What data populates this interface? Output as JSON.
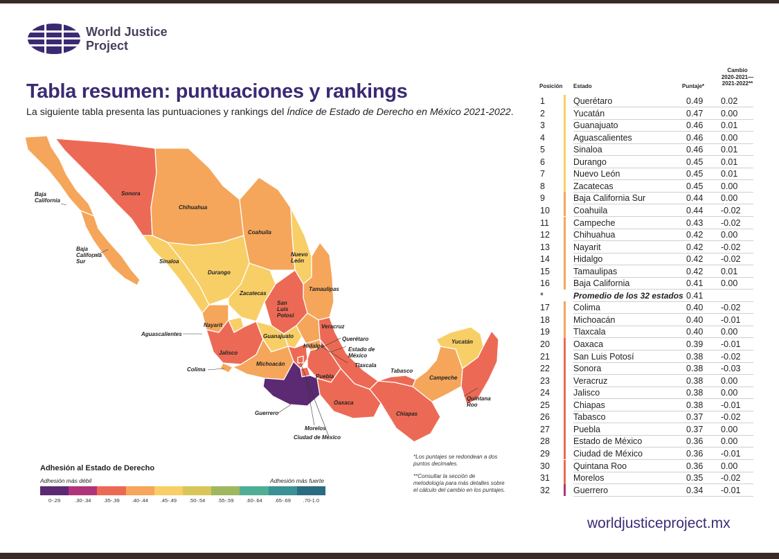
{
  "header": {
    "org_line1": "World Justice",
    "org_line2": "Project",
    "title": "Tabla resumen: puntuaciones y rankings",
    "subtitle_prefix": "La siguiente tabla presenta las puntuaciones y rankings del ",
    "subtitle_italic": "Índice de Estado de Derecho en México 2021-2022",
    "subtitle_suffix": "."
  },
  "map_labels": {
    "baja_california": "Baja California",
    "baja_california_sur": "Baja California Sur",
    "sonora": "Sonora",
    "chihuahua": "Chihuahua",
    "coahuila": "Coahuila",
    "nuevo_leon": "Nuevo León",
    "tamaulipas": "Tamaulipas",
    "sinaloa": "Sinaloa",
    "durango": "Durango",
    "zacatecas": "Zacatecas",
    "san_luis_potosi": "San Luis Potosí",
    "nayarit": "Nayarit",
    "aguascalientes": "Aguascalientes",
    "guanajuato": "Guanajuato",
    "queretaro": "Querétaro",
    "veracruz": "Veracruz",
    "hidalgo": "Hidalgo",
    "estado_de_mexico": "Estado de México",
    "tlaxcala": "Tlaxcala",
    "jalisco": "Jalisco",
    "colima": "Colima",
    "michoacan": "Michoacán",
    "puebla": "Puebla",
    "tabasco": "Tabasco",
    "campeche": "Campeche",
    "yucatan": "Yucatán",
    "quintana_roo": "Quintana Roo",
    "guerrero": "Guerrero",
    "oaxaca": "Oaxaca",
    "chiapas": "Chiapas",
    "morelos": "Morelos",
    "ciudad_de_mexico": "Ciudad de México"
  },
  "legend": {
    "title": "Adhesión al Estado de Derecho",
    "weak": "Adhesión más débil",
    "strong": "Adhesión más fuerte",
    "bins": [
      {
        "label": "0-.29",
        "color": "#5b2a73"
      },
      {
        "label": ".30-.34",
        "color": "#b0347a"
      },
      {
        "label": ".35-.39",
        "color": "#ec6a55"
      },
      {
        "label": ".40-.44",
        "color": "#f5a65a"
      },
      {
        "label": ".45-.49",
        "color": "#f8cf66"
      },
      {
        "label": ".50-.54",
        "color": "#d9c65a"
      },
      {
        "label": ".55-.59",
        "color": "#9fb85f"
      },
      {
        "label": ".60-.64",
        "color": "#4fae95"
      },
      {
        "label": ".65-.69",
        "color": "#3a9196"
      },
      {
        "label": ".70-1.0",
        "color": "#2b6c80"
      }
    ]
  },
  "notes": {
    "note1": "*Los puntajes se redondean a dos puntos decimales.",
    "note2": "**Consultar la sección de metodología para más detalles sobre el cálculo del cambio en los puntajes."
  },
  "table": {
    "headers": {
      "position": "Posición",
      "state": "Estado",
      "score": "Puntaje*",
      "change_l1": "Cambio",
      "change_l2": "2020-2021—",
      "change_l3": "2021-2022**"
    },
    "rows": [
      {
        "pos": "1",
        "state": "Querétaro",
        "score": "0.49",
        "change": "0.02",
        "color": "#f8cf66"
      },
      {
        "pos": "2",
        "state": "Yucatán",
        "score": "0.47",
        "change": "0.00",
        "color": "#f8cf66"
      },
      {
        "pos": "3",
        "state": "Guanajuato",
        "score": "0.46",
        "change": "0.01",
        "color": "#f8cf66"
      },
      {
        "pos": "4",
        "state": "Aguascalientes",
        "score": "0.46",
        "change": "0.00",
        "color": "#f8cf66"
      },
      {
        "pos": "5",
        "state": "Sinaloa",
        "score": "0.46",
        "change": "0.01",
        "color": "#f8cf66"
      },
      {
        "pos": "6",
        "state": "Durango",
        "score": "0.45",
        "change": "0.01",
        "color": "#f8cf66"
      },
      {
        "pos": "7",
        "state": "Nuevo León",
        "score": "0.45",
        "change": "0.01",
        "color": "#f8cf66"
      },
      {
        "pos": "8",
        "state": "Zacatecas",
        "score": "0.45",
        "change": "0.00",
        "color": "#f8cf66"
      },
      {
        "pos": "9",
        "state": "Baja California Sur",
        "score": "0.44",
        "change": "0.00",
        "color": "#f5a65a"
      },
      {
        "pos": "10",
        "state": "Coahuila",
        "score": "0.44",
        "change": "-0.02",
        "color": "#f5a65a"
      },
      {
        "pos": "11",
        "state": "Campeche",
        "score": "0.43",
        "change": "-0.02",
        "color": "#f5a65a"
      },
      {
        "pos": "12",
        "state": "Chihuahua",
        "score": "0.42",
        "change": "0.00",
        "color": "#f5a65a"
      },
      {
        "pos": "13",
        "state": "Nayarit",
        "score": "0.42",
        "change": "-0.02",
        "color": "#f5a65a"
      },
      {
        "pos": "14",
        "state": "Hidalgo",
        "score": "0.42",
        "change": "-0.02",
        "color": "#f5a65a"
      },
      {
        "pos": "15",
        "state": "Tamaulipas",
        "score": "0.42",
        "change": "0.01",
        "color": "#f5a65a"
      },
      {
        "pos": "16",
        "state": "Baja California",
        "score": "0.41",
        "change": "0.00",
        "color": "#f5a65a"
      },
      {
        "pos": "*",
        "state": "Promedio de los 32 estados",
        "score": "0.41",
        "change": "",
        "color": "",
        "avg": true
      },
      {
        "pos": "17",
        "state": "Colima",
        "score": "0.40",
        "change": "-0.02",
        "color": "#f5a65a"
      },
      {
        "pos": "18",
        "state": "Michoacán",
        "score": "0.40",
        "change": "-0.01",
        "color": "#f5a65a"
      },
      {
        "pos": "19",
        "state": "Tlaxcala",
        "score": "0.40",
        "change": "0.00",
        "color": "#f5a65a"
      },
      {
        "pos": "20",
        "state": "Oaxaca",
        "score": "0.39",
        "change": "-0.01",
        "color": "#ec6a55"
      },
      {
        "pos": "21",
        "state": "San Luis Potosí",
        "score": "0.38",
        "change": "-0.02",
        "color": "#ec6a55"
      },
      {
        "pos": "22",
        "state": "Sonora",
        "score": "0.38",
        "change": "-0.03",
        "color": "#ec6a55"
      },
      {
        "pos": "23",
        "state": "Veracruz",
        "score": "0.38",
        "change": "0.00",
        "color": "#ec6a55"
      },
      {
        "pos": "24",
        "state": "Jalisco",
        "score": "0.38",
        "change": "0.00",
        "color": "#ec6a55"
      },
      {
        "pos": "25",
        "state": "Chiapas",
        "score": "0.38",
        "change": "-0.01",
        "color": "#ec6a55"
      },
      {
        "pos": "26",
        "state": "Tabasco",
        "score": "0.37",
        "change": "-0.02",
        "color": "#ec6a55"
      },
      {
        "pos": "27",
        "state": "Puebla",
        "score": "0.37",
        "change": "0.00",
        "color": "#ec6a55"
      },
      {
        "pos": "28",
        "state": "Estado de México",
        "score": "0.36",
        "change": "0.00",
        "color": "#ec6a55"
      },
      {
        "pos": "29",
        "state": "Ciudad de México",
        "score": "0.36",
        "change": "-0.01",
        "color": "#ec6a55"
      },
      {
        "pos": "30",
        "state": "Quintana Roo",
        "score": "0.36",
        "change": "0.00",
        "color": "#ec6a55"
      },
      {
        "pos": "31",
        "state": "Morelos",
        "score": "0.35",
        "change": "-0.02",
        "color": "#ec6a55"
      },
      {
        "pos": "32",
        "state": "Guerrero",
        "score": "0.34",
        "change": "-0.01",
        "color": "#b0347a"
      }
    ]
  },
  "footer": {
    "url": "worldjusticeproject.mx"
  }
}
